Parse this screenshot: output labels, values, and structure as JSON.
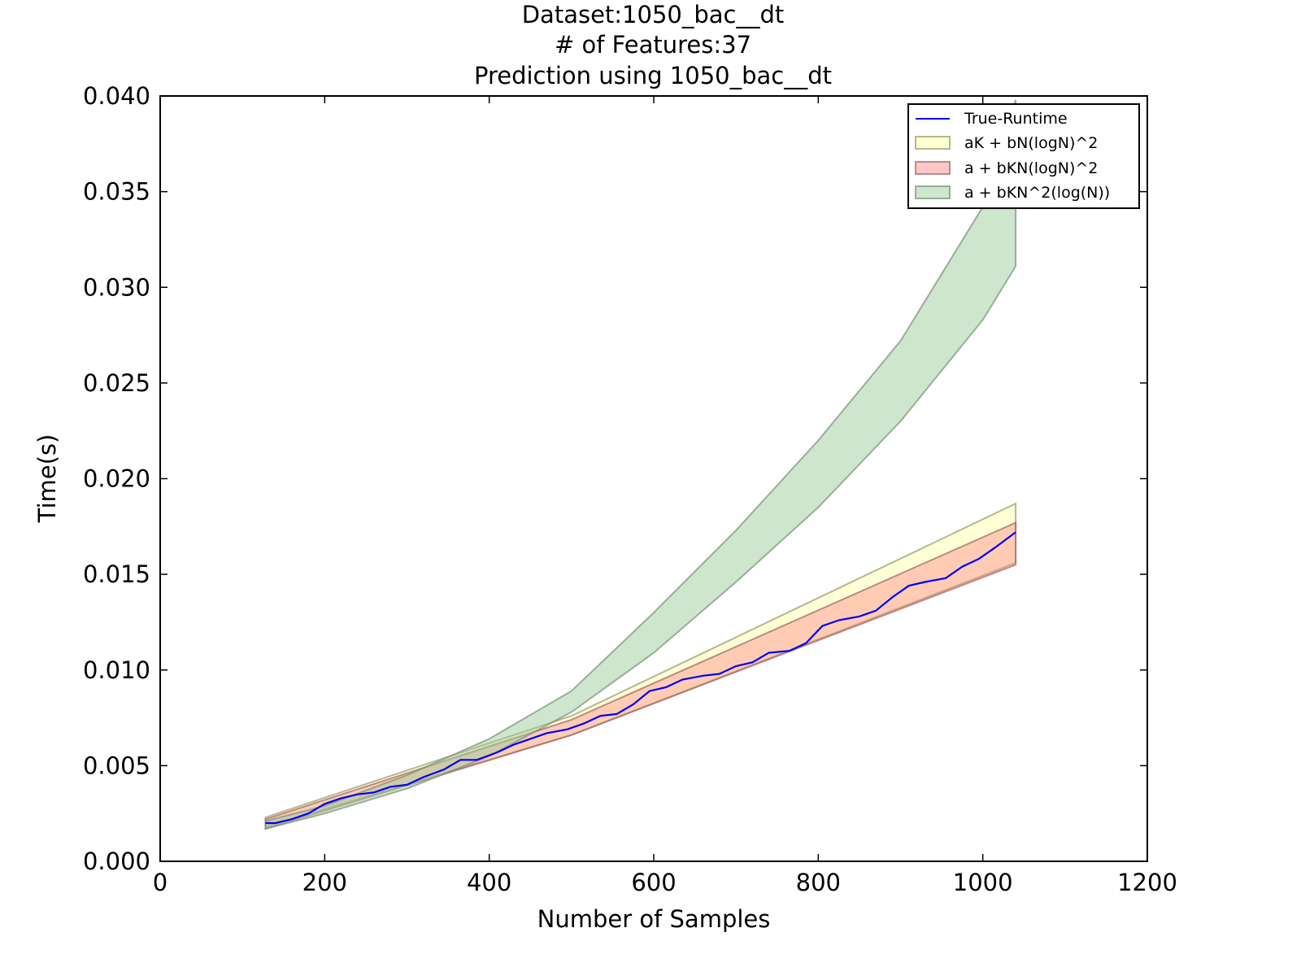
{
  "chart_data": {
    "type": "area",
    "title_lines": [
      "Dataset:1050_bac__dt",
      "# of Features:37",
      "Prediction using 1050_bac__dt"
    ],
    "xlabel": "Number of Samples",
    "ylabel": "Time(s)",
    "xlim": [
      0,
      1200
    ],
    "ylim": [
      0,
      0.04
    ],
    "x_ticks": [
      0,
      200,
      400,
      600,
      800,
      1000,
      1200
    ],
    "x_tick_labels": [
      "0",
      "200",
      "400",
      "600",
      "800",
      "1000",
      "1200"
    ],
    "y_ticks": [
      0,
      0.005,
      0.01,
      0.015,
      0.02,
      0.025,
      0.03,
      0.035,
      0.04
    ],
    "y_tick_labels": [
      "0.000",
      "0.005",
      "0.010",
      "0.015",
      "0.020",
      "0.025",
      "0.030",
      "0.035",
      "0.040"
    ],
    "grid": false,
    "legend_position": "top-right",
    "bands": [
      {
        "name": "aK + bN(logN)^2",
        "color": "#ffff99",
        "edge_color": "#999966",
        "x": [
          128,
          500,
          1040
        ],
        "lower": [
          0.0018,
          0.0066,
          0.0156
        ],
        "upper": [
          0.0023,
          0.0076,
          0.0187
        ]
      },
      {
        "name": "a + bKN(logN)^2",
        "color": "#ff8080",
        "edge_color": "#996666",
        "x": [
          128,
          500,
          1040
        ],
        "lower": [
          0.0017,
          0.0066,
          0.0155
        ],
        "upper": [
          0.0022,
          0.0074,
          0.0177
        ]
      },
      {
        "name": "a + bKN^2(log(N))",
        "color": "#9dcc9d",
        "edge_color": "#7a8f7a",
        "x": [
          128,
          200,
          300,
          400,
          500,
          600,
          700,
          800,
          900,
          1000,
          1040
        ],
        "lower": [
          0.0017,
          0.0025,
          0.0038,
          0.0055,
          0.0078,
          0.0109,
          0.0146,
          0.0185,
          0.023,
          0.0283,
          0.0311
        ],
        "upper": [
          0.0021,
          0.0029,
          0.0045,
          0.0064,
          0.0089,
          0.013,
          0.0173,
          0.022,
          0.0272,
          0.0342,
          0.0398
        ]
      }
    ],
    "series": [
      {
        "name": "True-Runtime",
        "color": "#0000ff",
        "x": [
          128,
          140,
          160,
          180,
          200,
          220,
          240,
          260,
          280,
          300,
          320,
          345,
          365,
          385,
          410,
          430,
          450,
          470,
          495,
          515,
          535,
          555,
          575,
          595,
          615,
          635,
          660,
          680,
          700,
          720,
          740,
          765,
          785,
          805,
          825,
          850,
          870,
          890,
          910,
          930,
          955,
          975,
          995,
          1015,
          1040
        ],
        "y": [
          0.002,
          0.002,
          0.0022,
          0.0025,
          0.003,
          0.0033,
          0.0035,
          0.0036,
          0.0039,
          0.004,
          0.0044,
          0.0048,
          0.0053,
          0.0053,
          0.0057,
          0.0061,
          0.0064,
          0.0067,
          0.0069,
          0.0072,
          0.0076,
          0.0077,
          0.0082,
          0.0089,
          0.0091,
          0.0095,
          0.0097,
          0.0098,
          0.0102,
          0.0104,
          0.0109,
          0.011,
          0.0114,
          0.0123,
          0.0126,
          0.0128,
          0.0131,
          0.0138,
          0.0144,
          0.0146,
          0.0148,
          0.0154,
          0.0158,
          0.0164,
          0.0172
        ]
      }
    ]
  }
}
